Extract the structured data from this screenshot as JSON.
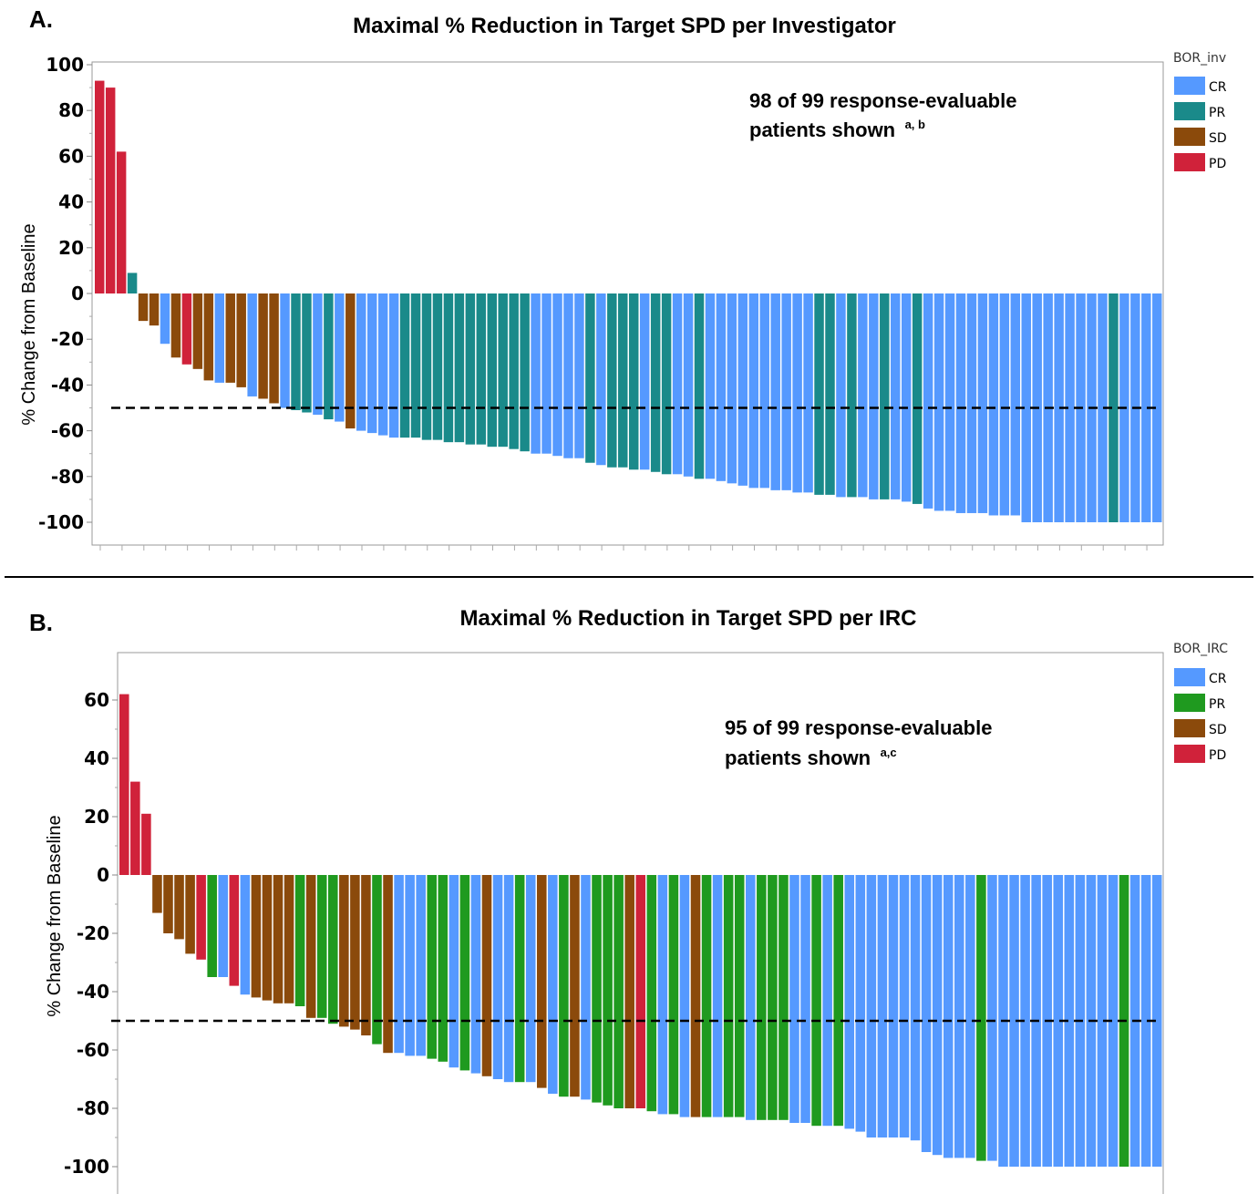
{
  "chart_data": [
    {
      "type": "bar",
      "panel_label": "A.",
      "title": "Maximal % Reduction in Target SPD per Investigator",
      "ylabel": "% Change from Baseline",
      "xlabel": "",
      "ylim": [
        -110,
        100
      ],
      "yticks": [
        "100",
        "80",
        "60",
        "40",
        "20",
        "0",
        "-20",
        "-40",
        "-60",
        "-80",
        "-100"
      ],
      "reference_line": -50,
      "legend": {
        "title": "BOR_inv",
        "placement": "right",
        "items": [
          {
            "label": "CR",
            "color": "#5599ff"
          },
          {
            "label": "PR",
            "color": "#1a8a8a"
          },
          {
            "label": "SD",
            "color": "#8b4a0b"
          },
          {
            "label": "PD",
            "color": "#d0223a"
          }
        ]
      },
      "annotation": {
        "text": [
          "98 of 99 response-evaluable",
          "patients shown"
        ],
        "superscript": "a, b"
      },
      "values": [
        93,
        90,
        62,
        9,
        -12,
        -14,
        -22,
        -28,
        -31,
        -33,
        -38,
        -39,
        -39,
        -41,
        -45,
        -46,
        -48,
        -50,
        -51,
        -52,
        -53,
        -55,
        -56,
        -59,
        -60,
        -61,
        -62,
        -63,
        -63,
        -63,
        -64,
        -64,
        -65,
        -65,
        -66,
        -66,
        -67,
        -67,
        -68,
        -69,
        -70,
        -70,
        -71,
        -72,
        -72,
        -74,
        -75,
        -76,
        -76,
        -77,
        -77,
        -78,
        -79,
        -79,
        -80,
        -81,
        -81,
        -82,
        -83,
        -84,
        -85,
        -85,
        -86,
        -86,
        -87,
        -87,
        -88,
        -88,
        -89,
        -89,
        -89,
        -90,
        -90,
        -90,
        -91,
        -92,
        -94,
        -95,
        -95,
        -96,
        -96,
        -96,
        -97,
        -97,
        -97,
        -100,
        -100,
        -100,
        -100,
        -100,
        -100,
        -100,
        -100,
        -100,
        -100,
        -100,
        -100,
        -100
      ],
      "categories": [
        "PD",
        "PD",
        "PD",
        "PR",
        "SD",
        "SD",
        "CR",
        "SD",
        "PD",
        "SD",
        "SD",
        "CR",
        "SD",
        "SD",
        "CR",
        "SD",
        "SD",
        "CR",
        "PR",
        "PR",
        "CR",
        "PR",
        "CR",
        "SD",
        "CR",
        "CR",
        "CR",
        "CR",
        "PR",
        "PR",
        "PR",
        "PR",
        "PR",
        "PR",
        "PR",
        "PR",
        "PR",
        "PR",
        "PR",
        "PR",
        "CR",
        "CR",
        "CR",
        "CR",
        "CR",
        "PR",
        "CR",
        "PR",
        "PR",
        "PR",
        "CR",
        "PR",
        "PR",
        "CR",
        "CR",
        "PR",
        "CR",
        "CR",
        "CR",
        "CR",
        "CR",
        "CR",
        "CR",
        "CR",
        "CR",
        "CR",
        "PR",
        "PR",
        "CR",
        "PR",
        "CR",
        "CR",
        "PR",
        "CR",
        "CR",
        "PR",
        "CR",
        "CR",
        "CR",
        "CR",
        "CR",
        "CR",
        "CR",
        "CR",
        "CR",
        "CR",
        "CR",
        "CR",
        "CR",
        "CR",
        "CR",
        "CR",
        "CR",
        "PR",
        "CR",
        "CR",
        "CR",
        "CR"
      ]
    },
    {
      "type": "bar",
      "panel_label": "B.",
      "title": "Maximal % Reduction in Target SPD per IRC",
      "ylabel": "% Change from Baseline",
      "xlabel": "",
      "ylim": [
        -110,
        70
      ],
      "yticks": [
        "60",
        "40",
        "20",
        "0",
        "-20",
        "-40",
        "-60",
        "-80",
        "-100"
      ],
      "reference_line": -50,
      "legend": {
        "title": "BOR_IRC",
        "placement": "right",
        "items": [
          {
            "label": "CR",
            "color": "#5599ff"
          },
          {
            "label": "PR",
            "color": "#1f9a1f"
          },
          {
            "label": "SD",
            "color": "#8b4a0b"
          },
          {
            "label": "PD",
            "color": "#d0223a"
          }
        ]
      },
      "annotation": {
        "text": [
          "95 of 99 response-evaluable",
          "patients shown"
        ],
        "superscript": "a,c"
      },
      "values": [
        62,
        32,
        21,
        -13,
        -20,
        -22,
        -27,
        -29,
        -35,
        -35,
        -38,
        -41,
        -42,
        -43,
        -44,
        -44,
        -45,
        -49,
        -49,
        -51,
        -52,
        -53,
        -55,
        -58,
        -61,
        -61,
        -62,
        -62,
        -63,
        -64,
        -66,
        -67,
        -68,
        -69,
        -70,
        -71,
        -71,
        -71,
        -73,
        -75,
        -76,
        -76,
        -77,
        -78,
        -79,
        -80,
        -80,
        -80,
        -81,
        -82,
        -82,
        -83,
        -83,
        -83,
        -83,
        -83,
        -83,
        -84,
        -84,
        -84,
        -84,
        -85,
        -85,
        -86,
        -86,
        -86,
        -87,
        -88,
        -90,
        -90,
        -90,
        -90,
        -91,
        -95,
        -96,
        -97,
        -97,
        -97,
        -98,
        -98,
        -100,
        -100,
        -100,
        -100,
        -100,
        -100,
        -100,
        -100,
        -100,
        -100,
        -100,
        -100,
        -100,
        -100,
        -100
      ],
      "categories": [
        "PD",
        "PD",
        "PD",
        "SD",
        "SD",
        "SD",
        "SD",
        "PD",
        "PR",
        "CR",
        "PD",
        "CR",
        "SD",
        "SD",
        "SD",
        "SD",
        "PR",
        "SD",
        "PR",
        "PR",
        "SD",
        "SD",
        "SD",
        "PR",
        "SD",
        "CR",
        "CR",
        "CR",
        "PR",
        "PR",
        "CR",
        "PR",
        "CR",
        "SD",
        "CR",
        "CR",
        "PR",
        "CR",
        "SD",
        "CR",
        "PR",
        "SD",
        "CR",
        "PR",
        "PR",
        "PR",
        "SD",
        "PD",
        "PR",
        "CR",
        "PR",
        "CR",
        "SD",
        "PR",
        "CR",
        "PR",
        "PR",
        "CR",
        "PR",
        "PR",
        "PR",
        "CR",
        "CR",
        "PR",
        "CR",
        "PR",
        "CR",
        "CR",
        "CR",
        "CR",
        "CR",
        "CR",
        "CR",
        "CR",
        "CR",
        "CR",
        "CR",
        "CR",
        "PR",
        "CR",
        "CR",
        "CR",
        "CR",
        "CR",
        "CR",
        "CR",
        "CR",
        "CR",
        "CR",
        "CR",
        "CR",
        "PR",
        "CR",
        "CR",
        "CR"
      ]
    }
  ]
}
